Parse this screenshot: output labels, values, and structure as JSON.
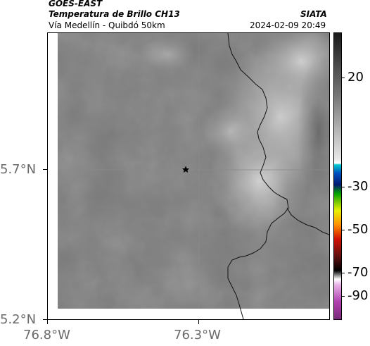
{
  "header": {
    "satellite": "GOES-EAST",
    "product": "Temperatura de Brillo CH13",
    "region": "Vía Medellín - Quibdó 50km",
    "source": "SIATA",
    "datetime": "2024-02-09 20:49"
  },
  "map": {
    "lat_labels": [
      "5.7°N",
      "5.2°N"
    ],
    "lon_labels": [
      "76.8°W",
      "76.3°W"
    ],
    "marker": "star-marker",
    "grid": true
  },
  "colorbar": {
    "labels": [
      "20",
      "-30",
      "-50",
      "-70",
      "-90"
    ],
    "palette": [
      "#2a2a2a",
      "#bfbfbf",
      "#00bfbf",
      "#0000aa",
      "#00aa00",
      "#ffff00",
      "#ff8800",
      "#cc0000",
      "#5a1010",
      "#000000",
      "#c060c0",
      "#8a2a8a"
    ]
  }
}
